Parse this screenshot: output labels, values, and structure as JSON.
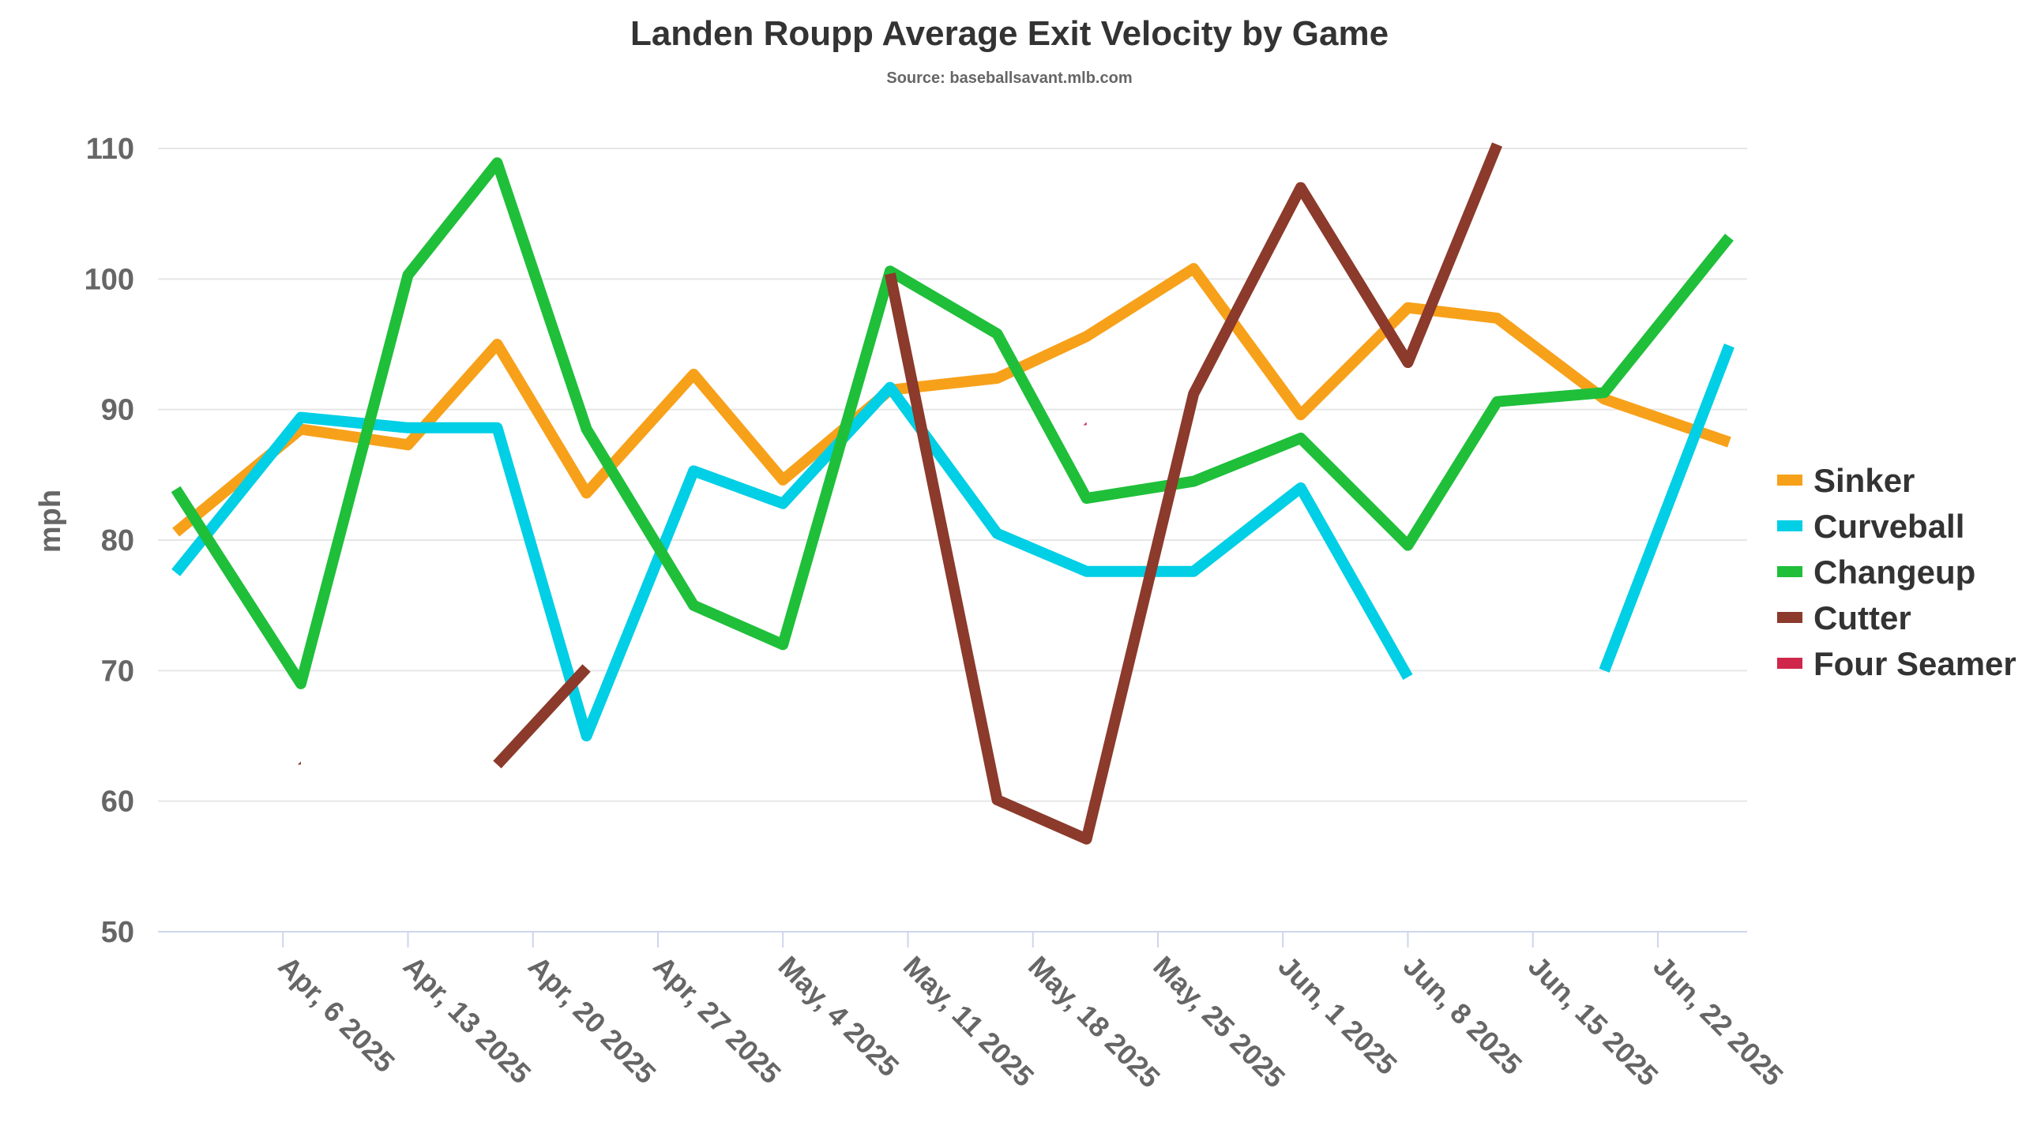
{
  "chart_data": {
    "type": "line",
    "title": "Landen Roupp Average Exit Velocity by Game",
    "subtitle": "Source: baseballsavant.mlb.com",
    "ylabel": "mph",
    "xlabel": "",
    "ylim": [
      50,
      110
    ],
    "yticks": [
      50,
      60,
      70,
      80,
      90,
      100,
      110
    ],
    "xlim": [
      "2025-03-30",
      "2025-06-27"
    ],
    "xticks": [
      "2025-04-06",
      "2025-04-13",
      "2025-04-20",
      "2025-04-27",
      "2025-05-04",
      "2025-05-11",
      "2025-05-18",
      "2025-05-25",
      "2025-06-01",
      "2025-06-08",
      "2025-06-15",
      "2025-06-22"
    ],
    "xtick_labels": [
      "Apr, 6 2025",
      "Apr, 13 2025",
      "Apr, 20 2025",
      "Apr, 27 2025",
      "May, 4 2025",
      "May, 11 2025",
      "May, 18 2025",
      "May, 25 2025",
      "Jun, 1 2025",
      "Jun, 8 2025",
      "Jun, 15 2025",
      "Jun, 22 2025"
    ],
    "grid": true,
    "legend": "right",
    "series": [
      {
        "name": "Sinker",
        "color": "#f7a11a",
        "points": [
          [
            "2025-03-31",
            80.6
          ],
          [
            "2025-04-07",
            88.5
          ],
          [
            "2025-04-13",
            87.3
          ],
          [
            "2025-04-18",
            95.0
          ],
          [
            "2025-04-23",
            83.6
          ],
          [
            "2025-04-29",
            92.7
          ],
          [
            "2025-05-04",
            84.6
          ],
          [
            "2025-05-10",
            91.5
          ],
          [
            "2025-05-16",
            92.4
          ],
          [
            "2025-05-21",
            95.6
          ],
          [
            "2025-05-27",
            100.8
          ],
          [
            "2025-06-02",
            89.6
          ],
          [
            "2025-06-08",
            97.8
          ],
          [
            "2025-06-13",
            97.0
          ],
          [
            "2025-06-19",
            90.8
          ],
          [
            "2025-06-26",
            87.5
          ]
        ]
      },
      {
        "name": "Curveball",
        "color": "#00cfe5",
        "points": [
          [
            "2025-03-31",
            77.5
          ],
          [
            "2025-04-07",
            89.4
          ],
          [
            "2025-04-13",
            88.6
          ],
          [
            "2025-04-18",
            88.6
          ],
          [
            "2025-04-23",
            65.0
          ],
          [
            "2025-04-29",
            85.3
          ],
          [
            "2025-05-04",
            82.8
          ],
          [
            "2025-05-10",
            91.7
          ],
          [
            "2025-05-16",
            80.5
          ],
          [
            "2025-05-21",
            77.6
          ],
          [
            "2025-05-27",
            77.6
          ],
          [
            "2025-06-02",
            84.0
          ],
          [
            "2025-06-08",
            69.5
          ],
          [
            "2025-06-13",
            null
          ],
          [
            "2025-06-19",
            70.0
          ],
          [
            "2025-06-26",
            94.9
          ]
        ]
      },
      {
        "name": "Changeup",
        "color": "#1fbf3a",
        "points": [
          [
            "2025-03-31",
            83.9
          ],
          [
            "2025-04-07",
            69.0
          ],
          [
            "2025-04-13",
            100.3
          ],
          [
            "2025-04-18",
            108.9
          ],
          [
            "2025-04-23",
            88.5
          ],
          [
            "2025-04-29",
            75.0
          ],
          [
            "2025-05-04",
            72.0
          ],
          [
            "2025-05-10",
            100.6
          ],
          [
            "2025-05-16",
            95.8
          ],
          [
            "2025-05-21",
            83.2
          ],
          [
            "2025-05-27",
            84.5
          ],
          [
            "2025-06-02",
            87.8
          ],
          [
            "2025-06-08",
            79.6
          ],
          [
            "2025-06-13",
            90.6
          ],
          [
            "2025-06-19",
            91.3
          ],
          [
            "2025-06-26",
            103.2
          ]
        ]
      },
      {
        "name": "Cutter",
        "color": "#8b3a2b",
        "points": [
          [
            "2025-03-31",
            null
          ],
          [
            "2025-04-07",
            62.8
          ],
          [
            "2025-04-13",
            null
          ],
          [
            "2025-04-18",
            62.8
          ],
          [
            "2025-04-23",
            70.2
          ],
          [
            "2025-04-29",
            null
          ],
          [
            "2025-05-04",
            null
          ],
          [
            "2025-05-10",
            100.4
          ],
          [
            "2025-05-16",
            60.1
          ],
          [
            "2025-05-21",
            57.1
          ],
          [
            "2025-05-27",
            91.2
          ],
          [
            "2025-06-02",
            107.0
          ],
          [
            "2025-06-08",
            93.6
          ],
          [
            "2025-06-13",
            110.3
          ],
          [
            "2025-06-19",
            null
          ],
          [
            "2025-06-26",
            null
          ]
        ]
      },
      {
        "name": "Four Seamer",
        "color": "#d0264b",
        "points": [
          [
            "2025-05-21",
            88.8
          ]
        ]
      }
    ]
  }
}
